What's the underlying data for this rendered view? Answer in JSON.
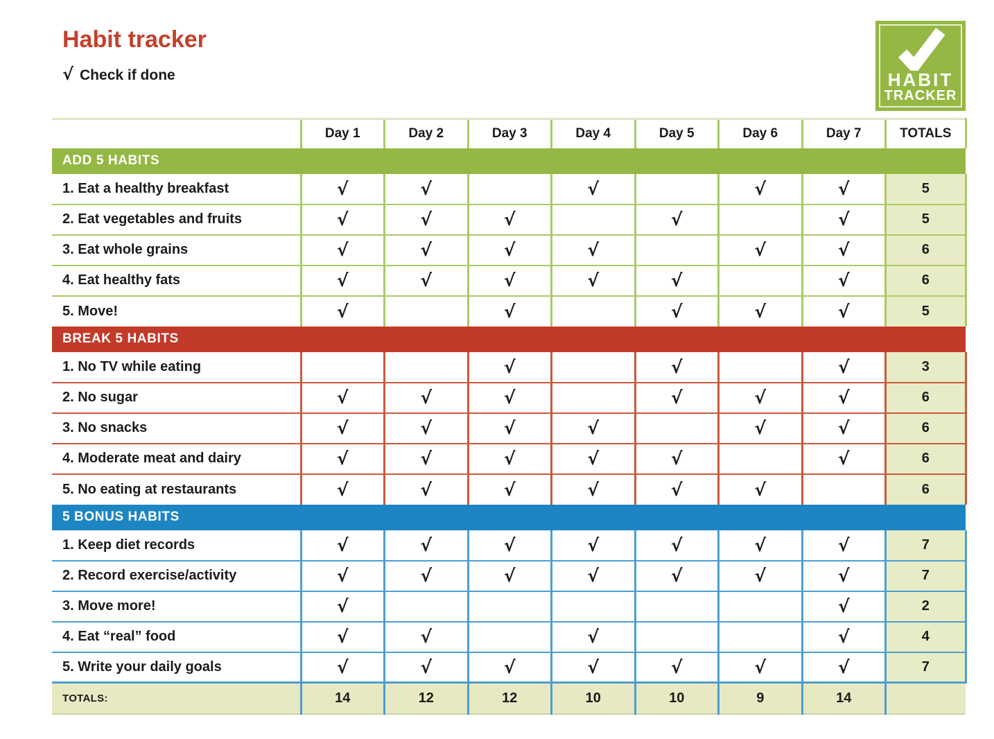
{
  "header": {
    "title": "Habit tracker",
    "subtitle_check": "√",
    "subtitle_text": "Check if done"
  },
  "logo": {
    "line1": "HABIT",
    "line2": "TRACKER"
  },
  "colors": {
    "title": "#c5402c",
    "text": "#1b1b1b",
    "green": "#94b843",
    "red": "#c23a29",
    "blue": "#1e85c3",
    "border_green": "#a8ca66",
    "border_red": "#c95a3d",
    "border_blue": "#4c9ed2",
    "pale": "#e8ecc6",
    "footer_bg": "#e6e9c2",
    "header_border": "#e3e6c3"
  },
  "table": {
    "check_glyph": "√",
    "day_headers": [
      "Day 1",
      "Day 2",
      "Day 3",
      "Day 4",
      "Day 5",
      "Day 6",
      "Day 7"
    ],
    "totals_header": "TOTALS",
    "sections": [
      {
        "key": "add",
        "title": "ADD 5 HABITS",
        "rows": [
          {
            "label": "1. Eat a healthy breakfast",
            "days": [
              1,
              1,
              0,
              1,
              0,
              1,
              1
            ],
            "total": 5
          },
          {
            "label": "2. Eat vegetables and fruits",
            "days": [
              1,
              1,
              1,
              0,
              1,
              0,
              1
            ],
            "total": 5
          },
          {
            "label": "3. Eat whole grains",
            "days": [
              1,
              1,
              1,
              1,
              0,
              1,
              1
            ],
            "total": 6
          },
          {
            "label": "4. Eat healthy fats",
            "days": [
              1,
              1,
              1,
              1,
              1,
              0,
              1
            ],
            "total": 6
          },
          {
            "label": "5. Move!",
            "days": [
              1,
              0,
              1,
              0,
              1,
              1,
              1
            ],
            "total": 5
          }
        ]
      },
      {
        "key": "break",
        "title": "BREAK 5 HABITS",
        "rows": [
          {
            "label": "1. No TV while eating",
            "days": [
              0,
              0,
              1,
              0,
              1,
              0,
              1
            ],
            "total": 3
          },
          {
            "label": "2. No sugar",
            "days": [
              1,
              1,
              1,
              0,
              1,
              1,
              1
            ],
            "total": 6
          },
          {
            "label": "3. No snacks",
            "days": [
              1,
              1,
              1,
              1,
              0,
              1,
              1
            ],
            "total": 6
          },
          {
            "label": "4. Moderate meat and dairy",
            "days": [
              1,
              1,
              1,
              1,
              1,
              0,
              1
            ],
            "total": 6
          },
          {
            "label": "5. No eating at restaurants",
            "days": [
              1,
              1,
              1,
              1,
              1,
              1,
              0
            ],
            "total": 6
          }
        ]
      },
      {
        "key": "bonus",
        "title": "5 BONUS HABITS",
        "rows": [
          {
            "label": "1. Keep diet records",
            "days": [
              1,
              1,
              1,
              1,
              1,
              1,
              1
            ],
            "total": 7
          },
          {
            "label": "2. Record exercise/activity",
            "days": [
              1,
              1,
              1,
              1,
              1,
              1,
              1
            ],
            "total": 7
          },
          {
            "label": "3. Move more!",
            "days": [
              1,
              0,
              0,
              0,
              0,
              0,
              1
            ],
            "total": 2
          },
          {
            "label": "4. Eat “real” food",
            "days": [
              1,
              1,
              0,
              1,
              0,
              0,
              1
            ],
            "total": 4
          },
          {
            "label": "5. Write your daily goals",
            "days": [
              1,
              1,
              1,
              1,
              1,
              1,
              1
            ],
            "total": 7
          }
        ]
      }
    ],
    "footer": {
      "label": "TOTALS:",
      "values": [
        14,
        12,
        12,
        10,
        10,
        9,
        14
      ]
    }
  }
}
